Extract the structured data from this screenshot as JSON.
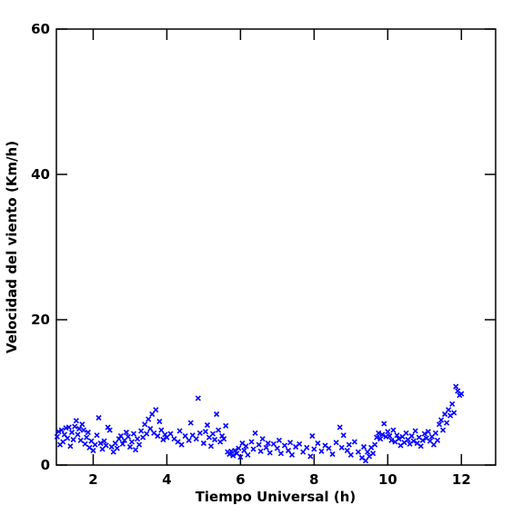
{
  "chart_data": {
    "type": "scatter",
    "x_label": "Tiempo Universal (h)",
    "y_label": "Velocidad del viento (Km/h)",
    "color": "#0000ff",
    "xlim": [
      1,
      12.93
    ],
    "ylim": [
      0,
      60
    ],
    "xticks": [
      2,
      4,
      6,
      8,
      10,
      12
    ],
    "yticks": [
      0,
      20,
      40,
      60
    ],
    "x": [
      1.02,
      1.06,
      1.1,
      1.14,
      1.18,
      1.22,
      1.26,
      1.3,
      1.34,
      1.38,
      1.42,
      1.46,
      1.5,
      1.54,
      1.58,
      1.62,
      1.66,
      1.7,
      1.74,
      1.78,
      1.82,
      1.86,
      1.9,
      1.95,
      2.0,
      2.05,
      2.1,
      2.15,
      2.2,
      2.25,
      2.3,
      2.35,
      2.4,
      2.45,
      2.5,
      2.55,
      2.6,
      2.65,
      2.7,
      2.75,
      2.8,
      2.85,
      2.9,
      2.95,
      3.0,
      3.05,
      3.1,
      3.15,
      3.2,
      3.25,
      3.3,
      3.35,
      3.4,
      3.45,
      3.5,
      3.55,
      3.6,
      3.65,
      3.7,
      3.75,
      3.8,
      3.85,
      3.9,
      3.95,
      4.0,
      4.1,
      4.2,
      4.3,
      4.35,
      4.4,
      4.5,
      4.6,
      4.65,
      4.7,
      4.8,
      4.85,
      4.9,
      5.0,
      5.05,
      5.1,
      5.15,
      5.2,
      5.25,
      5.3,
      5.35,
      5.4,
      5.45,
      5.5,
      5.55,
      5.6,
      5.65,
      5.7,
      5.75,
      5.8,
      5.85,
      5.9,
      5.95,
      6.0,
      6.05,
      6.1,
      6.15,
      6.2,
      6.3,
      6.35,
      6.4,
      6.5,
      6.55,
      6.6,
      6.7,
      6.75,
      6.8,
      6.9,
      7.0,
      7.05,
      7.1,
      7.2,
      7.3,
      7.35,
      7.4,
      7.5,
      7.6,
      7.7,
      7.8,
      7.9,
      7.95,
      8.0,
      8.1,
      8.2,
      8.3,
      8.4,
      8.5,
      8.6,
      8.7,
      8.75,
      8.8,
      8.9,
      8.95,
      9.0,
      9.1,
      9.2,
      9.3,
      9.35,
      9.4,
      9.45,
      9.5,
      9.55,
      9.6,
      9.65,
      9.7,
      9.75,
      9.8,
      9.85,
      9.9,
      9.95,
      10.0,
      10.05,
      10.1,
      10.15,
      10.2,
      10.25,
      10.3,
      10.35,
      10.4,
      10.45,
      10.5,
      10.55,
      10.6,
      10.65,
      10.7,
      10.75,
      10.8,
      10.85,
      10.9,
      10.95,
      11.0,
      11.05,
      11.1,
      11.15,
      11.2,
      11.25,
      11.3,
      11.35,
      11.4,
      11.45,
      11.5,
      11.55,
      11.6,
      11.65,
      11.7,
      11.75,
      11.8,
      11.85,
      11.9,
      11.95,
      12.0
    ],
    "values": [
      3.9,
      4.6,
      2.8,
      4.8,
      3.2,
      4.2,
      5.1,
      3.7,
      5.2,
      2.6,
      4.5,
      3.5,
      5.3,
      6.1,
      4.2,
      5.0,
      3.4,
      5.6,
      4.8,
      2.9,
      3.8,
      4.5,
      2.4,
      3.3,
      2.0,
      2.8,
      4.1,
      6.5,
      3.0,
      2.2,
      3.3,
      2.7,
      5.2,
      4.8,
      2.5,
      1.8,
      3.0,
      2.3,
      3.6,
      4.0,
      2.9,
      3.4,
      4.5,
      3.9,
      2.5,
      3.2,
      4.3,
      2.1,
      3.6,
      2.8,
      4.7,
      3.8,
      5.6,
      4.3,
      6.3,
      5.0,
      7.0,
      4.4,
      7.6,
      4.0,
      6.0,
      4.8,
      3.5,
      4.2,
      3.8,
      4.3,
      3.6,
      3.2,
      4.7,
      2.8,
      4.0,
      3.4,
      5.8,
      4.1,
      3.6,
      9.2,
      4.4,
      3.0,
      4.6,
      5.5,
      3.8,
      2.6,
      4.3,
      3.5,
      7.0,
      4.8,
      3.2,
      4.0,
      3.6,
      5.4,
      1.8,
      1.5,
      1.9,
      1.3,
      2.0,
      1.6,
      2.3,
      1.1,
      3.0,
      2.0,
      2.6,
      1.4,
      3.2,
      2.2,
      4.4,
      2.8,
      1.9,
      3.6,
      2.4,
      3.0,
      1.7,
      2.9,
      2.3,
      3.4,
      1.6,
      2.7,
      2.0,
      3.1,
      1.4,
      2.5,
      2.9,
      1.8,
      2.4,
      1.2,
      4.0,
      2.2,
      3.0,
      1.9,
      2.7,
      2.3,
      1.5,
      3.1,
      5.2,
      2.4,
      4.1,
      2.0,
      2.8,
      1.4,
      3.2,
      1.8,
      1.0,
      2.5,
      0.6,
      1.8,
      1.2,
      2.4,
      1.6,
      2.8,
      3.8,
      4.4,
      3.6,
      4.2,
      5.7,
      3.9,
      4.6,
      4.0,
      3.4,
      4.8,
      3.2,
      4.1,
      3.6,
      2.7,
      3.9,
      3.1,
      4.4,
      3.5,
      2.9,
      4.0,
      3.3,
      4.7,
      3.0,
      3.8,
      2.6,
      3.4,
      4.3,
      3.7,
      4.6,
      3.3,
      3.9,
      2.8,
      4.4,
      3.4,
      5.6,
      6.2,
      4.8,
      7.0,
      5.8,
      7.6,
      6.8,
      8.4,
      7.2,
      10.8,
      10.2,
      9.6,
      9.8
    ]
  }
}
